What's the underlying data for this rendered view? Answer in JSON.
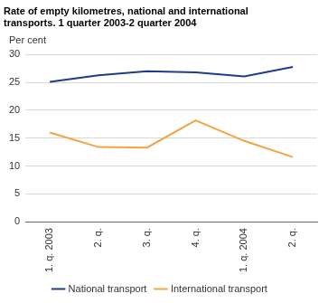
{
  "chart_data": {
    "type": "line",
    "title": [
      "Rate of empty kilometres, national and international",
      "transports. 1 quarter 2003-2 quarter 2004"
    ],
    "ylabel": "Per cent",
    "categories": [
      "1. q. 2003",
      "2. q.",
      "3. q.",
      "4. q.",
      "1. q. 2004",
      "2. q."
    ],
    "series": [
      {
        "name": "National transport",
        "color": "#1f3b8f",
        "values": [
          25.1,
          26.3,
          27.0,
          26.8,
          26.1,
          27.8
        ]
      },
      {
        "name": "International transport",
        "color": "#f5a340",
        "values": [
          16.0,
          13.4,
          13.3,
          18.2,
          14.5,
          11.6
        ]
      }
    ],
    "ylim": [
      0,
      30
    ],
    "yticks": [
      0,
      5,
      10,
      15,
      20,
      25,
      30
    ],
    "grid": true,
    "legend": "bottom"
  }
}
